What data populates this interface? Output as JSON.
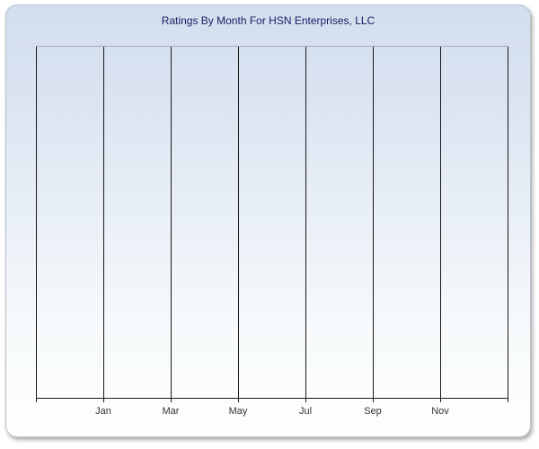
{
  "chart_data": {
    "type": "line",
    "title": "Ratings By Month For HSN Enterprises, LLC",
    "x_tick_labels": [
      "Jan",
      "Mar",
      "May",
      "Jul",
      "Sep",
      "Nov"
    ],
    "x_gridlines": {
      "count": 8,
      "labeled_gridline_indexes": [
        1,
        2,
        3,
        4,
        5,
        6
      ]
    },
    "series": [],
    "y_axis": {
      "tick_labels": []
    },
    "legend": "none",
    "grid": "vertical gridlines only",
    "plot_content": "empty - no data points plotted"
  },
  "colors": {
    "title_text": "#1b1b61",
    "axis_label_text": "#333333",
    "gridline": "#1a1a1a",
    "plot_top_border": "#a3abb8",
    "container_border": "#b9c0ca",
    "gradient_top": "#d2deef",
    "gradient_bottom": "#fdfefe",
    "page_background": "#ffffff"
  }
}
